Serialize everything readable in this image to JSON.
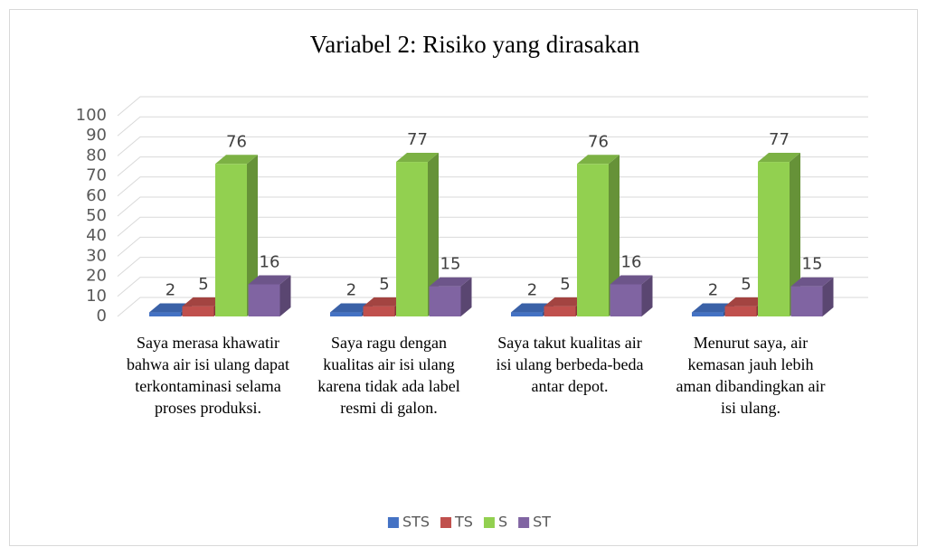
{
  "chart_data": {
    "type": "bar3d",
    "title": "Variabel 2: Risiko yang dirasakan",
    "categories": [
      "Saya merasa khawatir bahwa air isi ulang dapat terkontaminasi selama proses produksi.",
      "Saya ragu dengan kualitas air isi ulang karena tidak ada label resmi di galon.",
      "Saya takut kualitas air isi ulang berbeda-beda antar depot.",
      "Menurut saya, air kemasan jauh lebih aman dibandingkan air isi ulang."
    ],
    "series": [
      {
        "name": "STS",
        "color": "#4472c4",
        "values": [
          2,
          2,
          2,
          2
        ]
      },
      {
        "name": "TS",
        "color": "#c0504d",
        "values": [
          5,
          5,
          5,
          5
        ]
      },
      {
        "name": "S",
        "color": "#92d050",
        "values": [
          76,
          77,
          76,
          77
        ]
      },
      {
        "name": "ST",
        "color": "#8064a2",
        "values": [
          16,
          15,
          16,
          15
        ]
      }
    ],
    "ylim": [
      0,
      100
    ],
    "yticks": [
      0,
      10,
      20,
      30,
      40,
      50,
      60,
      70,
      80,
      90,
      100
    ],
    "grid": true,
    "legend": "bottom"
  }
}
